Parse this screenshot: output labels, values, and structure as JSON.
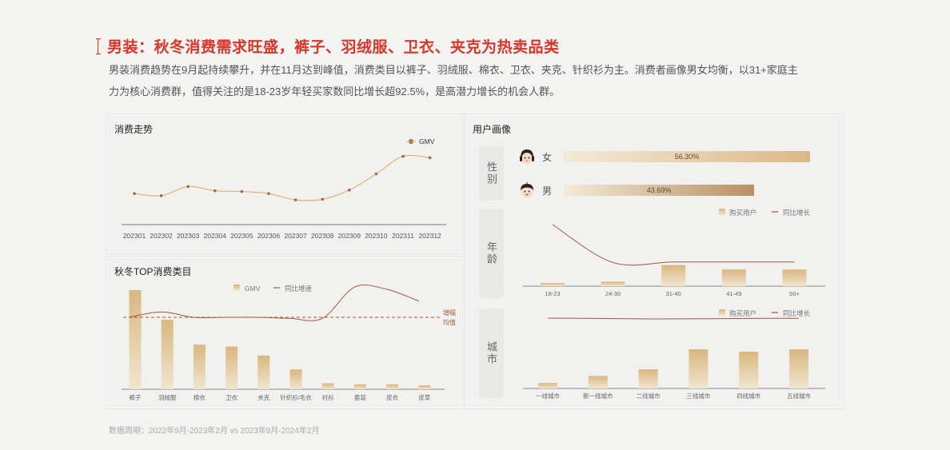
{
  "header": {
    "title": "男装：秋冬消费需求旺盛，裤子、羽绒服、卫衣、夹克为热卖品类",
    "description_line1": "男装消费趋势在9月起持续攀升，并在11月达到峰值，消费类目以裤子、羽绒服、棉衣、卫衣、夹克、针织衫为主。消费者画像男女均衡，以31+家庭主",
    "description_line2": "力为核心消费群，值得关注的是18-23岁年轻买家数同比增长超92.5%，是高潜力增长的机会人群。"
  },
  "panels": {
    "trend": {
      "title": "消费走势"
    },
    "top_categories": {
      "title": "秋冬TOP消费类目"
    },
    "user_profile": {
      "title": "用户画像",
      "gender_tab": "性别",
      "age_tab": "年龄",
      "city_tab": "城市",
      "female_label": "女",
      "male_label": "男",
      "female_value": "56.30%",
      "male_value": "43.69%"
    }
  },
  "footer": {
    "note": "数据周期：2022年9月-2023年2月 vs 2023年9月-2024年2月"
  },
  "colors": {
    "title_red": "#d9352a",
    "bar_gold": "#d9b77f",
    "bar_gold_light": "#f1e5cf",
    "line_brown": "#a0583a",
    "trend_line": "#e0b27a",
    "trend_marker": "#9a6a4a"
  },
  "chart_data": [
    {
      "type": "line",
      "title": "消费走势",
      "legend": [
        "GMV"
      ],
      "legend_position": "top-right",
      "categories": [
        "202301",
        "202302",
        "202303",
        "202304",
        "202305",
        "202306",
        "202307",
        "202308",
        "202309",
        "202310",
        "202311",
        "202312"
      ],
      "series": [
        {
          "name": "GMV",
          "values": [
            35,
            32,
            45,
            39,
            38,
            35,
            26,
            27,
            40,
            63,
            88,
            86
          ]
        }
      ],
      "xlabel": "",
      "ylabel": "",
      "ylim": [
        0,
        100
      ],
      "grid": false,
      "note": "Values are relative (no y-axis shown)"
    },
    {
      "type": "bar",
      "title": "秋冬TOP消费类目",
      "legend": [
        "GMV",
        "同比增速"
      ],
      "legend_position": "top-center",
      "categories": [
        "裤子",
        "羽绒服",
        "棉衣",
        "卫衣",
        "夹克",
        "针织衫/毛衣",
        "衬衫",
        "套装",
        "皮衣",
        "皮草"
      ],
      "series": [
        {
          "name": "GMV",
          "type": "bar",
          "values": [
            100,
            70,
            45,
            43,
            34,
            20,
            6,
            5,
            5,
            4
          ]
        },
        {
          "name": "同比增速",
          "type": "line",
          "values": [
            50,
            55,
            50,
            50,
            50,
            49,
            49,
            78,
            76,
            65
          ]
        }
      ],
      "reference_line": {
        "label": "增幅均值",
        "value": 50,
        "style": "dashed"
      },
      "xlabel": "",
      "ylabel": "",
      "ylim": [
        0,
        100
      ],
      "grid": false,
      "note": "Values are relative (no y-axis shown)"
    },
    {
      "type": "bar",
      "title": "性别",
      "categories": [
        "女",
        "男"
      ],
      "values": [
        56.3,
        43.69
      ],
      "orientation": "horizontal",
      "unit": "%"
    },
    {
      "type": "bar",
      "title": "年龄",
      "legend": [
        "购买用户",
        "同比增长"
      ],
      "legend_position": "top-right",
      "categories": [
        "18-23",
        "24-30",
        "31-40",
        "41-49",
        "50+"
      ],
      "series": [
        {
          "name": "购买用户",
          "type": "bar",
          "values": [
            5,
            7,
            33,
            26,
            26
          ]
        },
        {
          "name": "同比增长",
          "type": "line",
          "values": [
            100,
            27,
            28,
            28,
            28
          ]
        }
      ],
      "ylim": [
        0,
        100
      ],
      "note": "Values are relative (no y-axis shown)"
    },
    {
      "type": "bar",
      "title": "城市",
      "legend": [
        "购买用户",
        "同比增长"
      ],
      "legend_position": "top-right",
      "categories": [
        "一线城市",
        "新一线城市",
        "二线城市",
        "三线城市",
        "四线城市",
        "五线城市"
      ],
      "series": [
        {
          "name": "购买用户",
          "type": "bar",
          "values": [
            14,
            32,
            49,
            100,
            94,
            100
          ]
        },
        {
          "name": "同比增长",
          "type": "line",
          "values": [
            70,
            68,
            65,
            66,
            68,
            69
          ]
        }
      ],
      "ylim": [
        0,
        100
      ],
      "note": "Values are relative (no y-axis shown)"
    }
  ]
}
